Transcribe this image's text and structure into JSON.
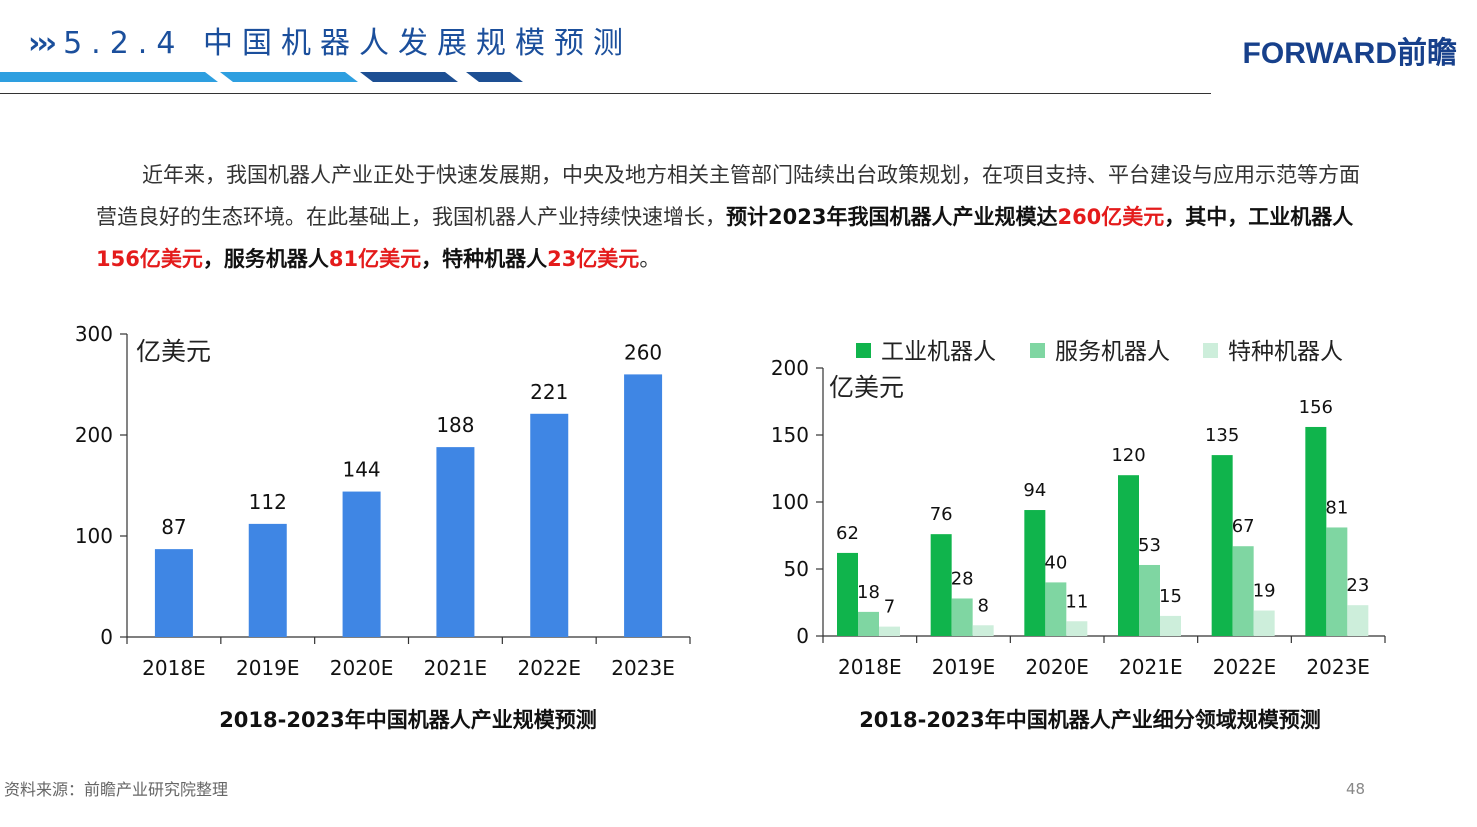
{
  "header": {
    "title": "5.2.4 中国机器人发展规模预测",
    "chevrons": "›››",
    "logo": "FORWARD前瞻"
  },
  "intro": {
    "seg1": "近年来，我国机器人产业正处于快速发展期，中央及地方相关主管部门陆续出台政策规划，在项目支持、平台建设与应用示范等方面营造良好的生态环境。在此基础上，我国机器人产业持续快速增长，",
    "seg2": "预计2023年我国机器人产业规模达",
    "seg3": "260亿美元",
    "seg4": "，其中，工业机器人",
    "seg5": "156亿美元",
    "seg6": "，服务机器人",
    "seg7": "81亿美元",
    "seg8": "，特种机器人",
    "seg9": "23亿美元",
    "seg10": "。"
  },
  "footer": {
    "source": "资料来源：前瞻产业研究院整理",
    "page": "48"
  },
  "colors": {
    "title_blue": "#1b4f9c",
    "bar_blue": "#3f86e4",
    "industrial": "#10b44c",
    "service": "#7fd6a2",
    "special": "#cdeedb",
    "highlight_red": "#e41b1b"
  },
  "chart_data": [
    {
      "type": "bar",
      "title": "2018-2023年中国机器人产业规模预测",
      "unit_label": "亿美元",
      "categories": [
        "2018E",
        "2019E",
        "2020E",
        "2021E",
        "2022E",
        "2023E"
      ],
      "values": [
        87,
        112,
        144,
        188,
        221,
        260
      ],
      "ylim": [
        0,
        300
      ],
      "yticks": [
        0,
        100,
        200,
        300
      ],
      "grid": false,
      "legend": "none"
    },
    {
      "type": "bar",
      "title": "2018-2023年中国机器人产业细分领域规模预测",
      "unit_label": "亿美元",
      "categories": [
        "2018E",
        "2019E",
        "2020E",
        "2021E",
        "2022E",
        "2023E"
      ],
      "series": [
        {
          "name": "工业机器人",
          "values": [
            62,
            76,
            94,
            120,
            135,
            156
          ]
        },
        {
          "name": "服务机器人",
          "values": [
            18,
            28,
            40,
            53,
            67,
            81
          ]
        },
        {
          "name": "特种机器人",
          "values": [
            7,
            8,
            11,
            15,
            19,
            23
          ]
        }
      ],
      "ylim": [
        0,
        200
      ],
      "yticks": [
        0,
        50,
        100,
        150,
        200
      ],
      "grid": false,
      "legend": "top"
    }
  ]
}
